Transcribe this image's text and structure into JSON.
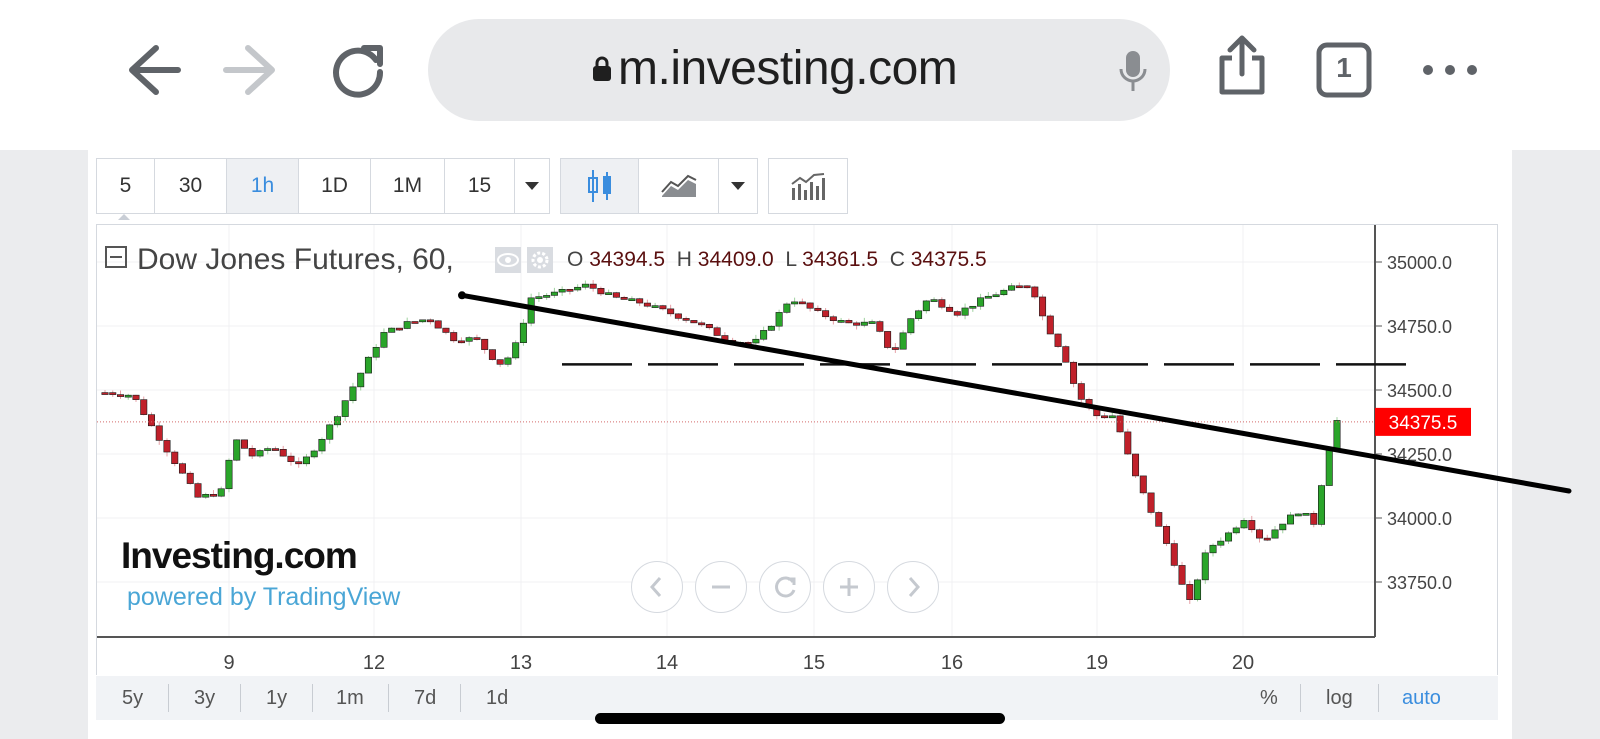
{
  "browser": {
    "url": "m.investing.com",
    "tab_count": "1"
  },
  "toolbar": {
    "timeframes": [
      "5",
      "30",
      "1h",
      "1D",
      "1M",
      "15"
    ],
    "active_timeframe": "1h"
  },
  "legend": {
    "symbol": "Dow Jones Futures, 60,",
    "open_label": "O",
    "open_value": "34394.5",
    "high_label": "H",
    "high_value": "34409.0",
    "low_label": "L",
    "low_value": "34361.5",
    "close_label": "C",
    "close_value": "34375.5"
  },
  "branding": {
    "logo_text": "Investing.com",
    "powered_by": "powered by TradingView"
  },
  "bottom_bar": {
    "ranges": [
      "5y",
      "3y",
      "1y",
      "1m",
      "7d",
      "1d"
    ],
    "percent": "%",
    "log": "log",
    "auto": "auto"
  },
  "colors": {
    "up": "#2aa52a",
    "down": "#c0202a",
    "price_tag": "#ff0000",
    "accent": "#3a8dde"
  },
  "chart_data": {
    "type": "candlestick",
    "y_ticks": [
      "35000.0",
      "34750.0",
      "34500.0",
      "34250.0",
      "34000.0",
      "33750.0"
    ],
    "y_tick_values": [
      35000,
      34750,
      34500,
      34250,
      34000,
      33750
    ],
    "x_ticks": [
      "9",
      "12",
      "13",
      "14",
      "15",
      "16",
      "19",
      "20"
    ],
    "last_price": "34375.5",
    "last_price_value": 34375.5,
    "close_path": [
      [
        0,
        34490
      ],
      [
        0.6,
        34480
      ],
      [
        1.0,
        34360
      ],
      [
        1.5,
        34220
      ],
      [
        2.0,
        34080
      ],
      [
        2.5,
        34100
      ],
      [
        2.8,
        34310
      ],
      [
        3.2,
        34240
      ],
      [
        3.6,
        34280
      ],
      [
        4.2,
        34200
      ],
      [
        4.6,
        34290
      ],
      [
        5.0,
        34400
      ],
      [
        5.5,
        34560
      ],
      [
        6.0,
        34720
      ],
      [
        6.5,
        34760
      ],
      [
        7.0,
        34780
      ],
      [
        7.5,
        34700
      ],
      [
        8.0,
        34700
      ],
      [
        8.5,
        34600
      ],
      [
        8.8,
        34640
      ],
      [
        9.2,
        34860
      ],
      [
        9.8,
        34880
      ],
      [
        10.4,
        34910
      ],
      [
        11.0,
        34860
      ],
      [
        11.6,
        34840
      ],
      [
        12.2,
        34800
      ],
      [
        12.8,
        34760
      ],
      [
        13.4,
        34700
      ],
      [
        14.0,
        34680
      ],
      [
        14.4,
        34760
      ],
      [
        14.8,
        34860
      ],
      [
        15.4,
        34800
      ],
      [
        16.0,
        34760
      ],
      [
        16.6,
        34760
      ],
      [
        17.0,
        34640
      ],
      [
        17.4,
        34780
      ],
      [
        17.8,
        34860
      ],
      [
        18.4,
        34800
      ],
      [
        19.0,
        34860
      ],
      [
        19.6,
        34900
      ],
      [
        20.0,
        34910
      ],
      [
        20.3,
        34760
      ],
      [
        20.7,
        34640
      ],
      [
        21.0,
        34480
      ],
      [
        21.4,
        34400
      ],
      [
        21.8,
        34400
      ],
      [
        22.2,
        34180
      ],
      [
        22.6,
        34020
      ],
      [
        23.0,
        33870
      ],
      [
        23.4,
        33660
      ],
      [
        23.8,
        33880
      ],
      [
        24.2,
        33930
      ],
      [
        24.6,
        34000
      ],
      [
        25.0,
        33910
      ],
      [
        25.4,
        33980
      ],
      [
        25.8,
        34030
      ],
      [
        26.1,
        33980
      ],
      [
        26.4,
        34260
      ],
      [
        26.6,
        34380
      ]
    ],
    "trendline": {
      "from": [
        8.9,
        34870
      ],
      "to": [
        30.5,
        34220
      ]
    },
    "hline_value": 34600
  }
}
